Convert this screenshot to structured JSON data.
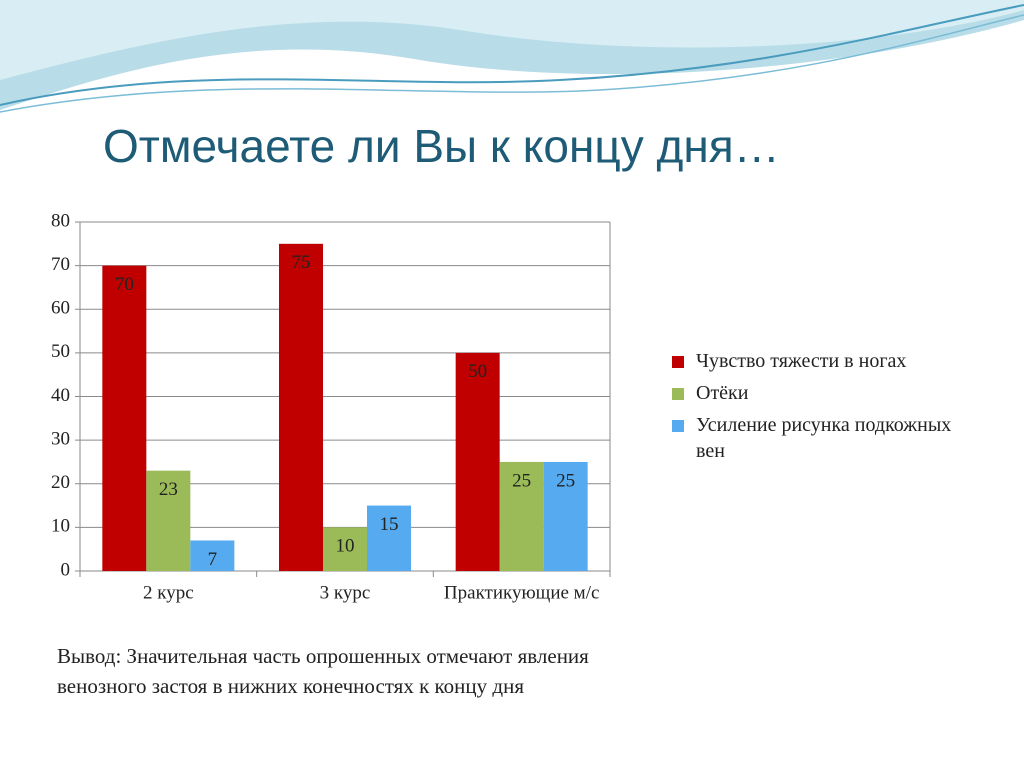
{
  "chart_data": {
    "type": "bar",
    "title": "Отмечаете ли Вы к концу дня…",
    "categories": [
      "2 курс",
      "3 курс",
      "Практикующие м/с"
    ],
    "series": [
      {
        "name": "Чувство тяжести в ногах",
        "color": "#c00000",
        "values": [
          70,
          75,
          50
        ]
      },
      {
        "name": "Отёки",
        "color": "#9bbb59",
        "values": [
          23,
          10,
          25
        ]
      },
      {
        "name": "Усиление рисунка подкожных вен",
        "color": "#55aaf0",
        "values": [
          7,
          15,
          25
        ]
      }
    ],
    "ylim": [
      0,
      80
    ],
    "yticks": [
      0,
      10,
      20,
      30,
      40,
      50,
      60,
      70,
      80
    ],
    "grid": true,
    "legend": "right"
  },
  "conclusion": {
    "lines": [
      "Вывод: Значительная часть опрошенных отмечают явления",
      "венозного застоя в нижних конечностях к концу дня"
    ]
  }
}
